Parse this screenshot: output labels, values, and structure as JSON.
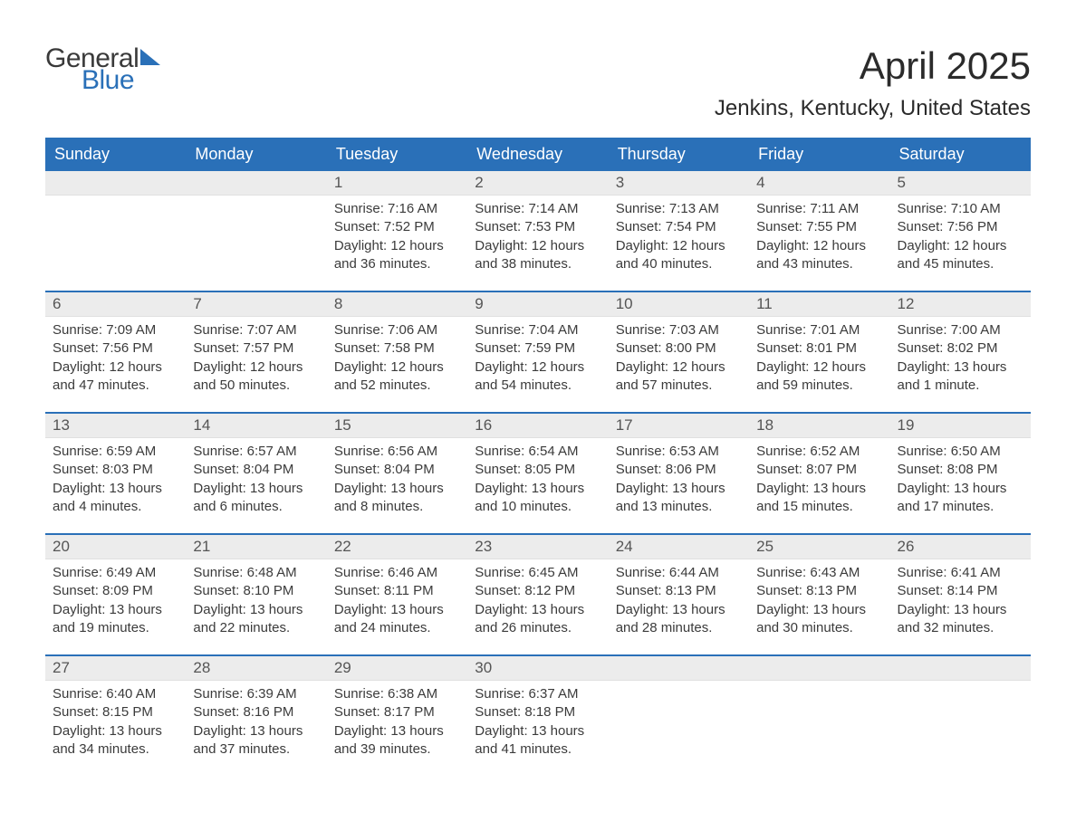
{
  "logo": {
    "text1": "General",
    "text2": "Blue",
    "sail_color": "#2a70b8"
  },
  "header": {
    "month_title": "April 2025",
    "location": "Jenkins, Kentucky, United States"
  },
  "colors": {
    "header_blue": "#2a70b8",
    "daynum_bg": "#ececec",
    "text": "#333333",
    "white": "#ffffff"
  },
  "weekdays": [
    "Sunday",
    "Monday",
    "Tuesday",
    "Wednesday",
    "Thursday",
    "Friday",
    "Saturday"
  ],
  "labels": {
    "sunrise": "Sunrise: ",
    "sunset": "Sunset: ",
    "daylight": "Daylight: "
  },
  "weeks": [
    [
      {
        "blank": true
      },
      {
        "blank": true
      },
      {
        "day": "1",
        "sunrise": "7:16 AM",
        "sunset": "7:52 PM",
        "daylight": "12 hours and 36 minutes."
      },
      {
        "day": "2",
        "sunrise": "7:14 AM",
        "sunset": "7:53 PM",
        "daylight": "12 hours and 38 minutes."
      },
      {
        "day": "3",
        "sunrise": "7:13 AM",
        "sunset": "7:54 PM",
        "daylight": "12 hours and 40 minutes."
      },
      {
        "day": "4",
        "sunrise": "7:11 AM",
        "sunset": "7:55 PM",
        "daylight": "12 hours and 43 minutes."
      },
      {
        "day": "5",
        "sunrise": "7:10 AM",
        "sunset": "7:56 PM",
        "daylight": "12 hours and 45 minutes."
      }
    ],
    [
      {
        "day": "6",
        "sunrise": "7:09 AM",
        "sunset": "7:56 PM",
        "daylight": "12 hours and 47 minutes."
      },
      {
        "day": "7",
        "sunrise": "7:07 AM",
        "sunset": "7:57 PM",
        "daylight": "12 hours and 50 minutes."
      },
      {
        "day": "8",
        "sunrise": "7:06 AM",
        "sunset": "7:58 PM",
        "daylight": "12 hours and 52 minutes."
      },
      {
        "day": "9",
        "sunrise": "7:04 AM",
        "sunset": "7:59 PM",
        "daylight": "12 hours and 54 minutes."
      },
      {
        "day": "10",
        "sunrise": "7:03 AM",
        "sunset": "8:00 PM",
        "daylight": "12 hours and 57 minutes."
      },
      {
        "day": "11",
        "sunrise": "7:01 AM",
        "sunset": "8:01 PM",
        "daylight": "12 hours and 59 minutes."
      },
      {
        "day": "12",
        "sunrise": "7:00 AM",
        "sunset": "8:02 PM",
        "daylight": "13 hours and 1 minute."
      }
    ],
    [
      {
        "day": "13",
        "sunrise": "6:59 AM",
        "sunset": "8:03 PM",
        "daylight": "13 hours and 4 minutes."
      },
      {
        "day": "14",
        "sunrise": "6:57 AM",
        "sunset": "8:04 PM",
        "daylight": "13 hours and 6 minutes."
      },
      {
        "day": "15",
        "sunrise": "6:56 AM",
        "sunset": "8:04 PM",
        "daylight": "13 hours and 8 minutes."
      },
      {
        "day": "16",
        "sunrise": "6:54 AM",
        "sunset": "8:05 PM",
        "daylight": "13 hours and 10 minutes."
      },
      {
        "day": "17",
        "sunrise": "6:53 AM",
        "sunset": "8:06 PM",
        "daylight": "13 hours and 13 minutes."
      },
      {
        "day": "18",
        "sunrise": "6:52 AM",
        "sunset": "8:07 PM",
        "daylight": "13 hours and 15 minutes."
      },
      {
        "day": "19",
        "sunrise": "6:50 AM",
        "sunset": "8:08 PM",
        "daylight": "13 hours and 17 minutes."
      }
    ],
    [
      {
        "day": "20",
        "sunrise": "6:49 AM",
        "sunset": "8:09 PM",
        "daylight": "13 hours and 19 minutes."
      },
      {
        "day": "21",
        "sunrise": "6:48 AM",
        "sunset": "8:10 PM",
        "daylight": "13 hours and 22 minutes."
      },
      {
        "day": "22",
        "sunrise": "6:46 AM",
        "sunset": "8:11 PM",
        "daylight": "13 hours and 24 minutes."
      },
      {
        "day": "23",
        "sunrise": "6:45 AM",
        "sunset": "8:12 PM",
        "daylight": "13 hours and 26 minutes."
      },
      {
        "day": "24",
        "sunrise": "6:44 AM",
        "sunset": "8:13 PM",
        "daylight": "13 hours and 28 minutes."
      },
      {
        "day": "25",
        "sunrise": "6:43 AM",
        "sunset": "8:13 PM",
        "daylight": "13 hours and 30 minutes."
      },
      {
        "day": "26",
        "sunrise": "6:41 AM",
        "sunset": "8:14 PM",
        "daylight": "13 hours and 32 minutes."
      }
    ],
    [
      {
        "day": "27",
        "sunrise": "6:40 AM",
        "sunset": "8:15 PM",
        "daylight": "13 hours and 34 minutes."
      },
      {
        "day": "28",
        "sunrise": "6:39 AM",
        "sunset": "8:16 PM",
        "daylight": "13 hours and 37 minutes."
      },
      {
        "day": "29",
        "sunrise": "6:38 AM",
        "sunset": "8:17 PM",
        "daylight": "13 hours and 39 minutes."
      },
      {
        "day": "30",
        "sunrise": "6:37 AM",
        "sunset": "8:18 PM",
        "daylight": "13 hours and 41 minutes."
      },
      {
        "blank": true
      },
      {
        "blank": true
      },
      {
        "blank": true
      }
    ]
  ]
}
